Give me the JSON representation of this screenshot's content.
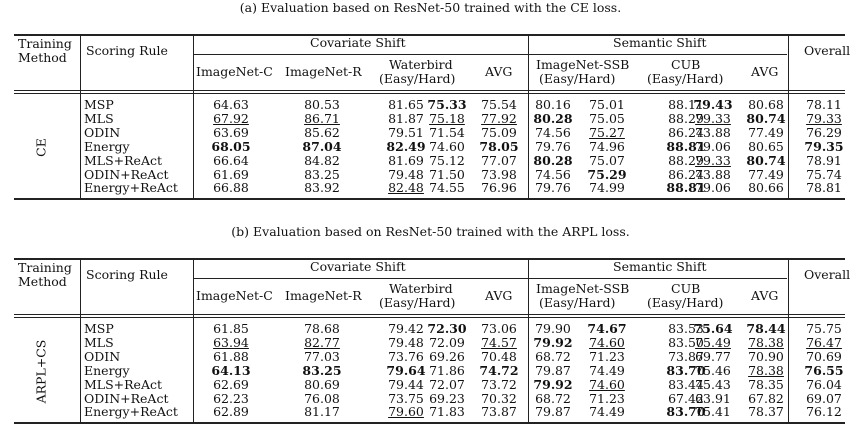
{
  "headers": {
    "training_method": "Training\nMethod",
    "scoring_rule": "Scoring Rule",
    "covariate_shift": "Covariate Shift",
    "semantic_shift": "Semantic Shift",
    "overall": "Overall",
    "imagenet_c": "ImageNet-C",
    "imagenet_r": "ImageNet-R",
    "waterbird": "Waterbird",
    "easy_hard": "(Easy/Hard)",
    "avg": "AVG",
    "imagenet_ssb": "ImageNet-SSB",
    "cub": "CUB"
  },
  "tables": [
    {
      "caption": "(a) Evaluation based on ResNet-50 trained with the CE loss.",
      "method": "CE",
      "rows": [
        {
          "rule": "MSP",
          "cells": [
            [
              "64.63",
              ""
            ],
            [
              "80.53",
              ""
            ],
            [
              "81.65",
              ""
            ],
            [
              "75.33",
              "b"
            ],
            [
              "75.54",
              ""
            ],
            [
              "80.16",
              ""
            ],
            [
              "75.01",
              ""
            ],
            [
              "88.11",
              ""
            ],
            [
              "79.43",
              "b"
            ],
            [
              "80.68",
              ""
            ],
            [
              "78.11",
              ""
            ]
          ]
        },
        {
          "rule": "MLS",
          "cells": [
            [
              "67.92",
              "u"
            ],
            [
              "86.71",
              "u"
            ],
            [
              "81.87",
              ""
            ],
            [
              "75.18",
              "u"
            ],
            [
              "77.92",
              "u"
            ],
            [
              "80.28",
              "b"
            ],
            [
              "75.05",
              ""
            ],
            [
              "88.29",
              ""
            ],
            [
              "79.33",
              "u"
            ],
            [
              "80.74",
              "b"
            ],
            [
              "79.33",
              "u"
            ]
          ]
        },
        {
          "rule": "ODIN",
          "cells": [
            [
              "63.69",
              ""
            ],
            [
              "85.62",
              ""
            ],
            [
              "79.51",
              ""
            ],
            [
              "71.54",
              ""
            ],
            [
              "75.09",
              ""
            ],
            [
              "74.56",
              ""
            ],
            [
              "75.27",
              "u"
            ],
            [
              "86.24",
              ""
            ],
            [
              "73.88",
              ""
            ],
            [
              "77.49",
              ""
            ],
            [
              "76.29",
              ""
            ]
          ]
        },
        {
          "rule": "Energy",
          "cells": [
            [
              "68.05",
              "b"
            ],
            [
              "87.04",
              "b"
            ],
            [
              "82.49",
              "b"
            ],
            [
              "74.60",
              ""
            ],
            [
              "78.05",
              "b"
            ],
            [
              "79.76",
              ""
            ],
            [
              "74.96",
              ""
            ],
            [
              "88.81",
              "b"
            ],
            [
              "79.06",
              ""
            ],
            [
              "80.65",
              ""
            ],
            [
              "79.35",
              "b"
            ]
          ]
        },
        {
          "rule": "MLS+ReAct",
          "cells": [
            [
              "66.64",
              ""
            ],
            [
              "84.82",
              ""
            ],
            [
              "81.69",
              ""
            ],
            [
              "75.12",
              ""
            ],
            [
              "77.07",
              ""
            ],
            [
              "80.28",
              "b"
            ],
            [
              "75.07",
              ""
            ],
            [
              "88.29",
              ""
            ],
            [
              "79.33",
              "u"
            ],
            [
              "80.74",
              "b"
            ],
            [
              "78.91",
              ""
            ]
          ]
        },
        {
          "rule": "ODIN+ReAct",
          "cells": [
            [
              "61.69",
              ""
            ],
            [
              "83.25",
              ""
            ],
            [
              "79.48",
              ""
            ],
            [
              "71.50",
              ""
            ],
            [
              "73.98",
              ""
            ],
            [
              "74.56",
              ""
            ],
            [
              "75.29",
              "b"
            ],
            [
              "86.24",
              ""
            ],
            [
              "73.88",
              ""
            ],
            [
              "77.49",
              ""
            ],
            [
              "75.74",
              ""
            ]
          ]
        },
        {
          "rule": "Energy+ReAct",
          "cells": [
            [
              "66.88",
              ""
            ],
            [
              "83.92",
              ""
            ],
            [
              "82.48",
              "u"
            ],
            [
              "74.55",
              ""
            ],
            [
              "76.96",
              ""
            ],
            [
              "79.76",
              ""
            ],
            [
              "74.99",
              ""
            ],
            [
              "88.81",
              "b"
            ],
            [
              "79.06",
              ""
            ],
            [
              "80.66",
              ""
            ],
            [
              "78.81",
              ""
            ]
          ]
        }
      ]
    },
    {
      "caption": "(b) Evaluation based on ResNet-50 trained with the ARPL loss.",
      "method": "ARPL+CS",
      "rows": [
        {
          "rule": "MSP",
          "cells": [
            [
              "61.85",
              ""
            ],
            [
              "78.68",
              ""
            ],
            [
              "79.42",
              ""
            ],
            [
              "72.30",
              "b"
            ],
            [
              "73.06",
              ""
            ],
            [
              "79.90",
              ""
            ],
            [
              "74.67",
              "b"
            ],
            [
              "83.53",
              ""
            ],
            [
              "75.64",
              "b"
            ],
            [
              "78.44",
              "b"
            ],
            [
              "75.75",
              ""
            ]
          ]
        },
        {
          "rule": "MLS",
          "cells": [
            [
              "63.94",
              "u"
            ],
            [
              "82.77",
              "u"
            ],
            [
              "79.48",
              ""
            ],
            [
              "72.09",
              ""
            ],
            [
              "74.57",
              "u"
            ],
            [
              "79.92",
              "b"
            ],
            [
              "74.60",
              "u"
            ],
            [
              "83.50",
              ""
            ],
            [
              "75.49",
              "u"
            ],
            [
              "78.38",
              "u"
            ],
            [
              "76.47",
              "u"
            ]
          ]
        },
        {
          "rule": "ODIN",
          "cells": [
            [
              "61.88",
              ""
            ],
            [
              "77.03",
              ""
            ],
            [
              "73.76",
              ""
            ],
            [
              "69.26",
              ""
            ],
            [
              "70.48",
              ""
            ],
            [
              "68.72",
              ""
            ],
            [
              "71.23",
              ""
            ],
            [
              "73.87",
              ""
            ],
            [
              "69.77",
              ""
            ],
            [
              "70.90",
              ""
            ],
            [
              "70.69",
              ""
            ]
          ]
        },
        {
          "rule": "Energy",
          "cells": [
            [
              "64.13",
              "b"
            ],
            [
              "83.25",
              "b"
            ],
            [
              "79.64",
              "b"
            ],
            [
              "71.86",
              ""
            ],
            [
              "74.72",
              "b"
            ],
            [
              "79.87",
              ""
            ],
            [
              "74.49",
              ""
            ],
            [
              "83.70",
              "b"
            ],
            [
              "75.46",
              ""
            ],
            [
              "78.38",
              "u"
            ],
            [
              "76.55",
              "b"
            ]
          ]
        },
        {
          "rule": "MLS+ReAct",
          "cells": [
            [
              "62.69",
              ""
            ],
            [
              "80.69",
              ""
            ],
            [
              "79.44",
              ""
            ],
            [
              "72.07",
              ""
            ],
            [
              "73.72",
              ""
            ],
            [
              "79.92",
              "b"
            ],
            [
              "74.60",
              "u"
            ],
            [
              "83.44",
              ""
            ],
            [
              "75.43",
              ""
            ],
            [
              "78.35",
              ""
            ],
            [
              "76.04",
              ""
            ]
          ]
        },
        {
          "rule": "ODIN+ReAct",
          "cells": [
            [
              "62.23",
              ""
            ],
            [
              "76.08",
              ""
            ],
            [
              "73.75",
              ""
            ],
            [
              "69.23",
              ""
            ],
            [
              "70.32",
              ""
            ],
            [
              "68.72",
              ""
            ],
            [
              "71.23",
              ""
            ],
            [
              "67.42",
              ""
            ],
            [
              "63.91",
              ""
            ],
            [
              "67.82",
              ""
            ],
            [
              "69.07",
              ""
            ]
          ]
        },
        {
          "rule": "Energy+ReAct",
          "cells": [
            [
              "62.89",
              ""
            ],
            [
              "81.17",
              ""
            ],
            [
              "79.60",
              "u"
            ],
            [
              "71.83",
              ""
            ],
            [
              "73.87",
              ""
            ],
            [
              "79.87",
              ""
            ],
            [
              "74.49",
              ""
            ],
            [
              "83.70",
              "b"
            ],
            [
              "75.41",
              ""
            ],
            [
              "78.37",
              ""
            ],
            [
              "76.12",
              ""
            ]
          ]
        }
      ]
    }
  ]
}
